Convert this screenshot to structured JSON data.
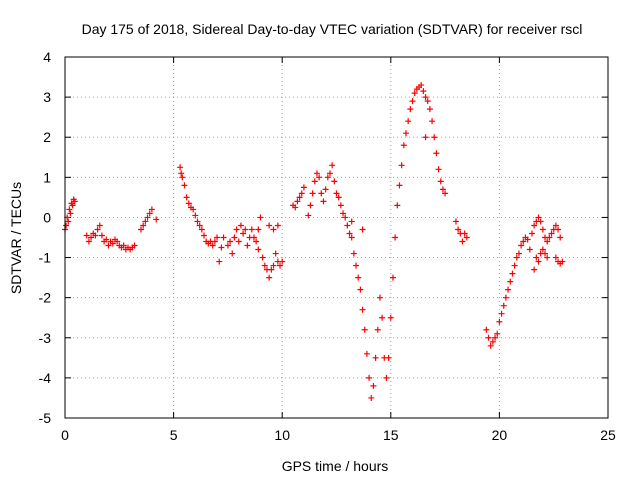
{
  "chart_data": {
    "type": "scatter",
    "title": "Day 175 of 2018, Sidereal Day-to-day VTEC variation (SDTVAR) for receiver rscl",
    "xlabel": "GPS time / hours",
    "ylabel": "SDTVAR / TECUs",
    "xlim": [
      0,
      25
    ],
    "ylim": [
      -5,
      4
    ],
    "x_ticks": [
      0,
      5,
      10,
      15,
      20,
      25
    ],
    "y_ticks": [
      -5,
      -4,
      -3,
      -2,
      -1,
      0,
      1,
      2,
      3,
      4
    ],
    "grid": true,
    "marker": "+",
    "marker_color": "#ff0000",
    "series": [
      {
        "name": "SDTVAR",
        "segments": [
          [
            [
              0.0,
              -0.3
            ],
            [
              0.05,
              -0.2
            ],
            [
              0.1,
              0.0
            ],
            [
              0.15,
              -0.1
            ],
            [
              0.2,
              0.2
            ],
            [
              0.25,
              0.1
            ],
            [
              0.3,
              0.35
            ],
            [
              0.35,
              0.3
            ],
            [
              0.4,
              0.45
            ],
            [
              0.45,
              0.4
            ]
          ],
          [
            [
              1.0,
              -0.45
            ],
            [
              1.1,
              -0.6
            ],
            [
              1.2,
              -0.5
            ],
            [
              1.3,
              -0.4
            ],
            [
              1.4,
              -0.45
            ],
            [
              1.5,
              -0.3
            ],
            [
              1.6,
              -0.2
            ],
            [
              1.7,
              -0.45
            ],
            [
              1.8,
              -0.6
            ],
            [
              1.9,
              -0.55
            ],
            [
              2.0,
              -0.7
            ],
            [
              2.1,
              -0.6
            ],
            [
              2.2,
              -0.65
            ],
            [
              2.3,
              -0.55
            ],
            [
              2.4,
              -0.6
            ],
            [
              2.5,
              -0.7
            ],
            [
              2.6,
              -0.75
            ],
            [
              2.7,
              -0.7
            ],
            [
              2.8,
              -0.8
            ],
            [
              2.9,
              -0.75
            ],
            [
              3.0,
              -0.8
            ],
            [
              3.1,
              -0.75
            ],
            [
              3.2,
              -0.7
            ]
          ],
          [
            [
              3.5,
              -0.3
            ],
            [
              3.6,
              -0.2
            ],
            [
              3.7,
              -0.1
            ],
            [
              3.8,
              0.0
            ],
            [
              3.9,
              0.1
            ],
            [
              4.0,
              0.2
            ],
            [
              4.2,
              -0.05
            ]
          ],
          [
            [
              5.3,
              1.25
            ],
            [
              5.35,
              1.1
            ],
            [
              5.4,
              1.0
            ],
            [
              5.5,
              0.8
            ],
            [
              5.6,
              0.5
            ],
            [
              5.7,
              0.35
            ],
            [
              5.8,
              0.25
            ],
            [
              5.9,
              0.2
            ],
            [
              6.0,
              0.05
            ],
            [
              6.1,
              -0.1
            ],
            [
              6.2,
              -0.2
            ],
            [
              6.3,
              -0.3
            ],
            [
              6.4,
              -0.45
            ],
            [
              6.5,
              -0.6
            ],
            [
              6.6,
              -0.65
            ],
            [
              6.7,
              -0.6
            ],
            [
              6.8,
              -0.7
            ],
            [
              6.9,
              -0.6
            ],
            [
              7.0,
              -0.5
            ],
            [
              7.1,
              -1.1
            ],
            [
              7.2,
              -0.75
            ],
            [
              7.3,
              -0.5
            ],
            [
              7.5,
              -0.7
            ],
            [
              7.6,
              -0.6
            ],
            [
              7.7,
              -0.9
            ],
            [
              7.8,
              -0.5
            ],
            [
              7.9,
              -0.3
            ],
            [
              8.0,
              -0.6
            ],
            [
              8.1,
              -0.2
            ],
            [
              8.2,
              -0.4
            ],
            [
              8.3,
              -0.3
            ],
            [
              8.4,
              -0.7
            ],
            [
              8.5,
              -0.5
            ],
            [
              8.6,
              -0.3
            ],
            [
              8.7,
              -0.5
            ],
            [
              8.8,
              -0.6
            ],
            [
              8.9,
              -0.8
            ]
          ],
          [
            [
              8.9,
              -0.3
            ],
            [
              9.0,
              0.0
            ],
            [
              9.1,
              -1.0
            ],
            [
              9.2,
              -1.2
            ],
            [
              9.3,
              -1.3
            ],
            [
              9.4,
              -1.5
            ],
            [
              9.5,
              -1.3
            ],
            [
              9.6,
              -1.2
            ],
            [
              9.7,
              -0.9
            ],
            [
              9.8,
              -1.1
            ],
            [
              9.9,
              -1.2
            ],
            [
              10.0,
              -1.1
            ],
            [
              9.4,
              -0.2
            ],
            [
              9.6,
              -0.3
            ],
            [
              9.8,
              -0.2
            ]
          ],
          [
            [
              10.5,
              0.3
            ],
            [
              10.6,
              0.25
            ],
            [
              10.7,
              0.4
            ],
            [
              10.8,
              0.5
            ],
            [
              10.9,
              0.6
            ],
            [
              11.0,
              0.75
            ]
          ],
          [
            [
              11.2,
              0.05
            ],
            [
              11.3,
              0.3
            ],
            [
              11.4,
              0.6
            ],
            [
              11.5,
              0.9
            ],
            [
              11.6,
              1.1
            ],
            [
              11.7,
              1.0
            ],
            [
              11.8,
              0.6
            ],
            [
              11.9,
              0.4
            ],
            [
              12.0,
              0.7
            ],
            [
              12.1,
              1.0
            ],
            [
              12.2,
              1.1
            ],
            [
              12.3,
              1.3
            ],
            [
              12.4,
              0.9
            ],
            [
              12.5,
              0.6
            ],
            [
              12.6,
              0.5
            ],
            [
              12.7,
              0.3
            ],
            [
              12.8,
              0.1
            ],
            [
              12.9,
              0.0
            ],
            [
              13.0,
              -0.2
            ],
            [
              13.1,
              -0.4
            ],
            [
              13.2,
              -0.5
            ],
            [
              13.3,
              -0.9
            ],
            [
              13.4,
              -1.2
            ],
            [
              13.5,
              -1.5
            ],
            [
              13.6,
              -1.8
            ],
            [
              13.7,
              -2.3
            ],
            [
              13.8,
              -2.8
            ],
            [
              13.9,
              -3.4
            ],
            [
              14.0,
              -4.0
            ],
            [
              14.1,
              -4.5
            ],
            [
              14.2,
              -4.2
            ],
            [
              14.3,
              -3.5
            ],
            [
              14.4,
              -2.8
            ],
            [
              14.5,
              -2.0
            ],
            [
              14.6,
              -2.5
            ],
            [
              14.7,
              -3.5
            ],
            [
              14.8,
              -4.0
            ],
            [
              14.9,
              -3.5
            ],
            [
              15.0,
              -2.5
            ],
            [
              15.1,
              -1.5
            ],
            [
              15.2,
              -0.5
            ],
            [
              15.3,
              0.3
            ],
            [
              15.4,
              0.8
            ],
            [
              15.5,
              1.3
            ],
            [
              15.6,
              1.8
            ],
            [
              15.7,
              2.1
            ],
            [
              15.8,
              2.4
            ],
            [
              15.9,
              2.7
            ],
            [
              16.0,
              2.9
            ],
            [
              16.1,
              3.1
            ],
            [
              16.2,
              3.2
            ],
            [
              16.3,
              3.25
            ],
            [
              16.4,
              3.3
            ],
            [
              16.5,
              3.15
            ],
            [
              16.6,
              3.0
            ],
            [
              16.7,
              2.9
            ],
            [
              16.8,
              2.7
            ],
            [
              16.9,
              2.4
            ],
            [
              17.0,
              2.0
            ],
            [
              17.1,
              1.6
            ],
            [
              17.2,
              1.2
            ],
            [
              17.3,
              0.9
            ],
            [
              17.4,
              0.7
            ],
            [
              17.5,
              0.6
            ],
            [
              16.6,
              2.0
            ],
            [
              13.7,
              -0.3
            ],
            [
              13.2,
              -0.1
            ]
          ],
          [
            [
              18.0,
              -0.1
            ],
            [
              18.1,
              -0.3
            ],
            [
              18.2,
              -0.4
            ],
            [
              18.3,
              -0.6
            ],
            [
              18.4,
              -0.4
            ],
            [
              18.5,
              -0.5
            ]
          ],
          [
            [
              19.4,
              -2.8
            ],
            [
              19.5,
              -3.0
            ],
            [
              19.6,
              -3.2
            ],
            [
              19.7,
              -3.1
            ],
            [
              19.8,
              -3.0
            ],
            [
              19.9,
              -2.9
            ],
            [
              20.0,
              -2.6
            ],
            [
              20.1,
              -2.4
            ],
            [
              20.2,
              -2.2
            ],
            [
              20.3,
              -2.0
            ],
            [
              20.4,
              -1.8
            ],
            [
              20.5,
              -1.6
            ],
            [
              20.6,
              -1.4
            ],
            [
              20.7,
              -1.2
            ],
            [
              20.8,
              -1.0
            ],
            [
              20.9,
              -0.9
            ],
            [
              21.0,
              -0.7
            ],
            [
              21.1,
              -0.6
            ],
            [
              21.2,
              -0.5
            ],
            [
              21.3,
              -0.55
            ],
            [
              21.4,
              -0.8
            ],
            [
              21.5,
              -0.4
            ],
            [
              21.6,
              -0.2
            ],
            [
              21.7,
              -0.1
            ],
            [
              21.8,
              0.0
            ],
            [
              21.9,
              -0.1
            ],
            [
              22.0,
              -0.3
            ],
            [
              22.1,
              -0.5
            ],
            [
              22.2,
              -0.6
            ],
            [
              22.3,
              -0.5
            ],
            [
              22.4,
              -0.4
            ],
            [
              22.5,
              -0.3
            ],
            [
              22.6,
              -0.2
            ],
            [
              22.7,
              -0.3
            ],
            [
              22.8,
              -0.5
            ],
            [
              21.6,
              -1.3
            ],
            [
              21.7,
              -1.0
            ],
            [
              21.8,
              -1.1
            ],
            [
              21.9,
              -0.9
            ],
            [
              22.0,
              -0.8
            ],
            [
              22.1,
              -0.9
            ],
            [
              22.2,
              -1.0
            ],
            [
              22.6,
              -1.0
            ],
            [
              22.7,
              -1.1
            ],
            [
              22.8,
              -1.15
            ],
            [
              22.9,
              -1.1
            ]
          ]
        ]
      }
    ]
  }
}
